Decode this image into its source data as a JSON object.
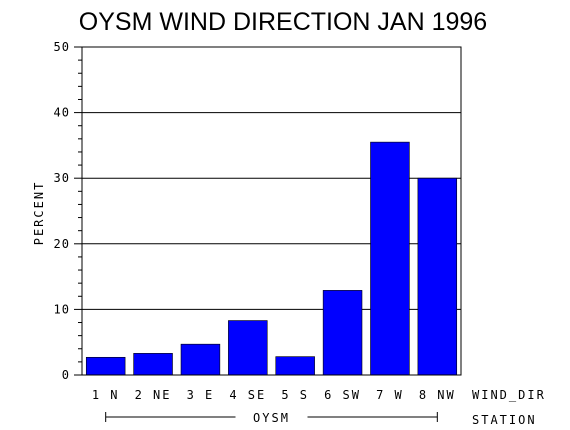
{
  "chart_data": {
    "type": "bar",
    "title": "OYSM WIND DIRECTION JAN 1996",
    "ylabel": "PERCENT",
    "xlabel": "WIND_DIR",
    "group_axis_label": "STATION",
    "group_name": "OYSM",
    "categories": [
      "1 N",
      "2 NE",
      "3 E",
      "4 SE",
      "5 S",
      "6 SW",
      "7 W",
      "8 NW"
    ],
    "values": [
      2.7,
      3.3,
      4.7,
      8.3,
      2.8,
      12.9,
      35.5,
      30.0
    ],
    "ylim": [
      0,
      50
    ],
    "yticks": [
      0,
      10,
      20,
      30,
      40,
      50
    ],
    "grid": true,
    "bar_color": "#0000ff"
  }
}
